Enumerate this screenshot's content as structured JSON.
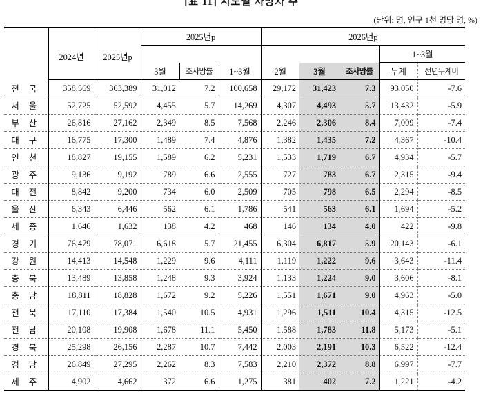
{
  "title": "[표 11] 시도별 사망자 수",
  "unit": "(단위: 명, 인구 1천 명당 명, %)",
  "headers": {
    "y2024": "2024년",
    "y2025p": "2025년p",
    "g2025p": "2025년p",
    "g2026p": "2026년p",
    "m3": "3월",
    "rate": "조사망률",
    "q13": "1~3월",
    "m2": "2월",
    "q13b": "1~3월",
    "cum": "누계",
    "yoy": "전년누계비"
  },
  "rows": [
    {
      "region": "전국",
      "y2024": "358,569",
      "y2025": "363,389",
      "m3_25": "31,012",
      "rate25": "7.2",
      "q25": "100,658",
      "m2_26": "29,172",
      "m3_26": "31,423",
      "rate26": "7.3",
      "cum": "93,050",
      "yoy": "-7.6"
    },
    {
      "region": "서울",
      "y2024": "52,725",
      "y2025": "52,592",
      "m3_25": "4,455",
      "rate25": "5.7",
      "q25": "14,269",
      "m2_26": "4,307",
      "m3_26": "4,493",
      "rate26": "5.7",
      "cum": "13,432",
      "yoy": "-5.9"
    },
    {
      "region": "부산",
      "y2024": "26,816",
      "y2025": "27,162",
      "m3_25": "2,349",
      "rate25": "8.5",
      "q25": "7,568",
      "m2_26": "2,246",
      "m3_26": "2,306",
      "rate26": "8.4",
      "cum": "7,009",
      "yoy": "-7.4"
    },
    {
      "region": "대구",
      "y2024": "16,775",
      "y2025": "17,300",
      "m3_25": "1,489",
      "rate25": "7.4",
      "q25": "4,876",
      "m2_26": "1,382",
      "m3_26": "1,435",
      "rate26": "7.2",
      "cum": "4,367",
      "yoy": "-10.4"
    },
    {
      "region": "인천",
      "y2024": "18,827",
      "y2025": "19,155",
      "m3_25": "1,589",
      "rate25": "6.2",
      "q25": "5,231",
      "m2_26": "1,533",
      "m3_26": "1,719",
      "rate26": "6.7",
      "cum": "4,934",
      "yoy": "-5.7"
    },
    {
      "region": "광주",
      "y2024": "9,136",
      "y2025": "9,192",
      "m3_25": "789",
      "rate25": "6.6",
      "q25": "2,555",
      "m2_26": "727",
      "m3_26": "783",
      "rate26": "6.7",
      "cum": "2,315",
      "yoy": "-9.4"
    },
    {
      "region": "대전",
      "y2024": "8,842",
      "y2025": "9,200",
      "m3_25": "734",
      "rate25": "6.0",
      "q25": "2,509",
      "m2_26": "705",
      "m3_26": "798",
      "rate26": "6.5",
      "cum": "2,294",
      "yoy": "-8.5"
    },
    {
      "region": "울산",
      "y2024": "6,343",
      "y2025": "6,446",
      "m3_25": "562",
      "rate25": "6.1",
      "q25": "1,786",
      "m2_26": "541",
      "m3_26": "563",
      "rate26": "6.1",
      "cum": "1,694",
      "yoy": "-5.2"
    },
    {
      "region": "세종",
      "y2024": "1,646",
      "y2025": "1,632",
      "m3_25": "138",
      "rate25": "4.2",
      "q25": "468",
      "m2_26": "146",
      "m3_26": "134",
      "rate26": "4.0",
      "cum": "422",
      "yoy": "-9.8"
    },
    {
      "region": "경기",
      "y2024": "76,479",
      "y2025": "78,071",
      "m3_25": "6,618",
      "rate25": "5.7",
      "q25": "21,455",
      "m2_26": "6,304",
      "m3_26": "6,817",
      "rate26": "5.9",
      "cum": "20,143",
      "yoy": "-6.1"
    },
    {
      "region": "강원",
      "y2024": "14,413",
      "y2025": "14,548",
      "m3_25": "1,229",
      "rate25": "9.6",
      "q25": "4,111",
      "m2_26": "1,119",
      "m3_26": "1,222",
      "rate26": "9.6",
      "cum": "3,643",
      "yoy": "-11.4"
    },
    {
      "region": "충북",
      "y2024": "13,489",
      "y2025": "13,858",
      "m3_25": "1,248",
      "rate25": "9.3",
      "q25": "3,924",
      "m2_26": "1,133",
      "m3_26": "1,224",
      "rate26": "9.0",
      "cum": "3,606",
      "yoy": "-8.1"
    },
    {
      "region": "충남",
      "y2024": "18,811",
      "y2025": "18,828",
      "m3_25": "1,672",
      "rate25": "9.2",
      "q25": "5,226",
      "m2_26": "1,551",
      "m3_26": "1,671",
      "rate26": "9.0",
      "cum": "4,963",
      "yoy": "-5.0"
    },
    {
      "region": "전북",
      "y2024": "17,110",
      "y2025": "17,384",
      "m3_25": "1,540",
      "rate25": "10.5",
      "q25": "4,931",
      "m2_26": "1,296",
      "m3_26": "1,511",
      "rate26": "10.4",
      "cum": "4,315",
      "yoy": "-12.5"
    },
    {
      "region": "전남",
      "y2024": "20,108",
      "y2025": "19,908",
      "m3_25": "1,678",
      "rate25": "11.1",
      "q25": "5,450",
      "m2_26": "1,588",
      "m3_26": "1,783",
      "rate26": "11.8",
      "cum": "5,173",
      "yoy": "-5.1"
    },
    {
      "region": "경북",
      "y2024": "25,298",
      "y2025": "26,156",
      "m3_25": "2,287",
      "rate25": "10.7",
      "q25": "7,442",
      "m2_26": "2,003",
      "m3_26": "2,191",
      "rate26": "10.3",
      "cum": "6,522",
      "yoy": "-12.4"
    },
    {
      "region": "경남",
      "y2024": "26,849",
      "y2025": "27,295",
      "m3_25": "2,262",
      "rate25": "8.3",
      "q25": "7,583",
      "m2_26": "2,210",
      "m3_26": "2,372",
      "rate26": "8.8",
      "cum": "6,997",
      "yoy": "-7.7"
    },
    {
      "region": "제주",
      "y2024": "4,902",
      "y2025": "4,662",
      "m3_25": "372",
      "rate25": "6.6",
      "q25": "1,275",
      "m2_26": "381",
      "m3_26": "402",
      "rate26": "7.2",
      "cum": "1,221",
      "yoy": "-4.2"
    }
  ]
}
